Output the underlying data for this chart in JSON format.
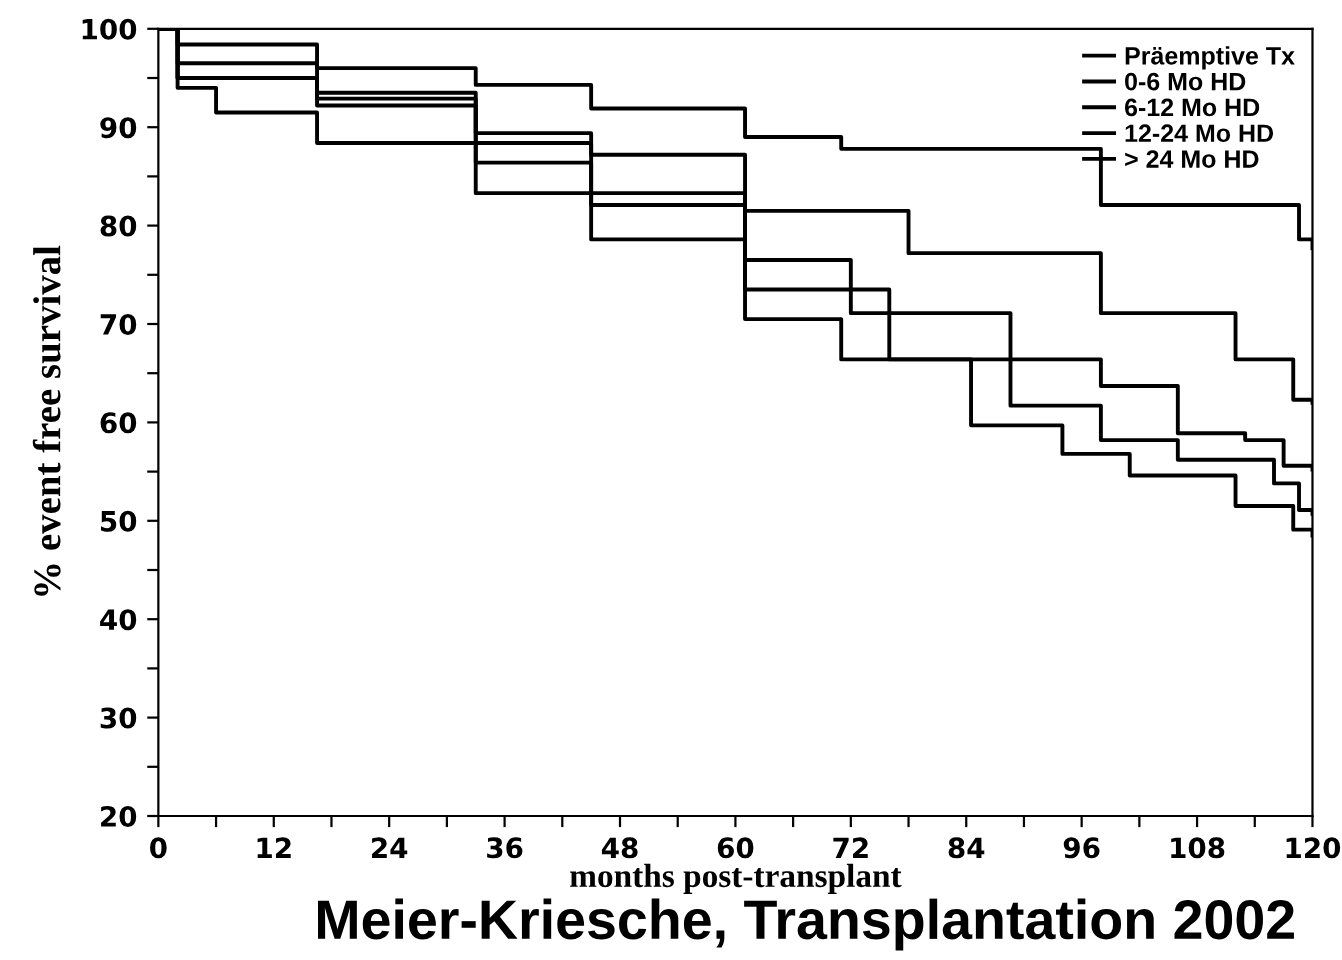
{
  "chart_data": {
    "type": "step",
    "xlabel": "months post-transplant",
    "ylabel": "% event free survival",
    "annotations": [
      "Meier-Kriesche, Transplantation 2002"
    ],
    "xlim": [
      0,
      120
    ],
    "ylim": [
      20,
      100
    ],
    "xticks": [
      0,
      {
        "value": 6,
        "label": null
      },
      12,
      {
        "value": 18,
        "label": null
      },
      24,
      {
        "value": 30,
        "label": null
      },
      36,
      {
        "value": 42,
        "label": null
      },
      48,
      {
        "value": 54,
        "label": null
      },
      60,
      {
        "value": 66,
        "label": null
      },
      72,
      {
        "value": 78,
        "label": null
      },
      84,
      {
        "value": 90,
        "label": null
      },
      96,
      {
        "value": 102,
        "label": null
      },
      108,
      {
        "value": 114,
        "label": null
      },
      120
    ],
    "yticks": [
      20,
      {
        "value": 25,
        "label": null
      },
      30,
      {
        "value": 35,
        "label": null
      },
      40,
      {
        "value": 45,
        "label": null
      },
      50,
      {
        "value": 55,
        "label": null
      },
      60,
      {
        "value": 65,
        "label": null
      },
      70,
      {
        "value": 75,
        "label": null
      },
      80,
      {
        "value": 85,
        "label": null
      },
      90,
      {
        "value": 95,
        "label": null
      },
      100
    ],
    "grid": false,
    "legend": "top right",
    "series": [
      {
        "name": "Präemptive Tx",
        "color": "#000000",
        "x": [
          0,
          2,
          16.5,
          33,
          45,
          61,
          71,
          98,
          118.6,
          120
        ],
        "values": [
          100,
          98.4,
          96,
          94.3,
          91.9,
          89,
          87.8,
          82.1,
          78.6,
          77.7
        ]
      },
      {
        "name": "0-6 Mo HD",
        "color": "#000000",
        "x": [
          0,
          2,
          16.5,
          33,
          45,
          61,
          78,
          98,
          112,
          118,
          120
        ],
        "values": [
          100,
          96.5,
          93.5,
          89.4,
          87.2,
          81.5,
          77.2,
          71.1,
          66.4,
          62.3,
          62
        ]
      },
      {
        "name": "6-12 Mo HD",
        "color": "#000000",
        "x": [
          0,
          2,
          16.5,
          33,
          45,
          61,
          72,
          88.6,
          98,
          106,
          113,
          117,
          120
        ],
        "values": [
          100,
          95,
          92.9,
          88.4,
          83.3,
          76.5,
          71.1,
          66.4,
          63.7,
          58.9,
          58.2,
          55.6,
          55.2
        ]
      },
      {
        "name": "12-24 Mo HD",
        "color": "#000000",
        "x": [
          0,
          2,
          16.5,
          33,
          45,
          61,
          76,
          88.6,
          98,
          106,
          116,
          118.6,
          120
        ],
        "values": [
          100,
          95,
          92.2,
          86.4,
          82.1,
          73.5,
          66.4,
          61.7,
          58.2,
          56.2,
          53.8,
          51.1,
          50.7
        ]
      },
      {
        "name": "> 24 Mo HD",
        "color": "#000000",
        "x": [
          0,
          2,
          6,
          16.5,
          33,
          45,
          61,
          71,
          84.5,
          94,
          101,
          112,
          118,
          120
        ],
        "values": [
          100,
          94,
          91.5,
          88.4,
          83.3,
          78.6,
          70.5,
          66.4,
          59.7,
          56.8,
          54.6,
          51.5,
          49.1,
          48.5
        ]
      }
    ]
  }
}
